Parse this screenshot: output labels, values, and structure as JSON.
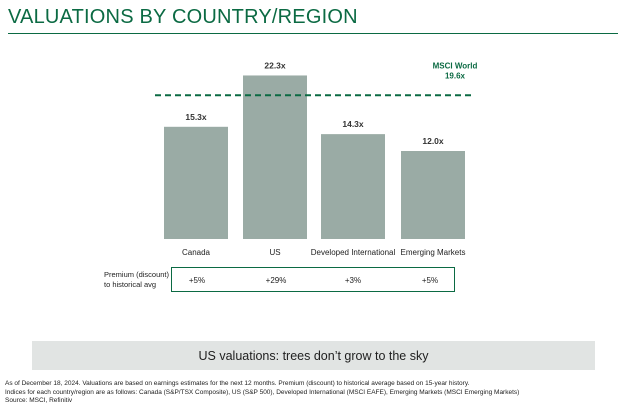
{
  "header": {
    "title": "VALUATIONS BY COUNTRY/REGION"
  },
  "chart_data": {
    "type": "bar",
    "categories": [
      "Canada",
      "US",
      "Developed International",
      "Emerging Markets"
    ],
    "values": [
      15.3,
      22.3,
      14.3,
      12.0
    ],
    "value_labels": [
      "15.3x",
      "22.3x",
      "14.3x",
      "12.0x"
    ],
    "ylim": [
      0,
      24
    ],
    "reference_line": {
      "label": "MSCI World",
      "value": 19.6,
      "value_label": "19.6x",
      "style": "dashed"
    },
    "colors": {
      "bar": "#9aaba5",
      "reference": "#0b6a43"
    }
  },
  "premium": {
    "label_line1": "Premium (discount)",
    "label_line2": "to historical avg",
    "values": [
      "+5%",
      "+29%",
      "+3%",
      "+5%"
    ]
  },
  "banner": {
    "text": "US valuations: trees don’t grow to the sky"
  },
  "notes": {
    "line1": "As of December 18, 2024. Valuations are based on earnings estimates for the next 12 months. Premium (discount) to historical average based on 15-year history.",
    "line2": "Indices for each country/region are as follows: Canada (S&P/TSX Composite), US (S&P 500), Developed International (MSCI EAFE), Emerging Markets (MSCI Emerging Markets)",
    "line3": "Source: MSCI, Refinitiv"
  }
}
